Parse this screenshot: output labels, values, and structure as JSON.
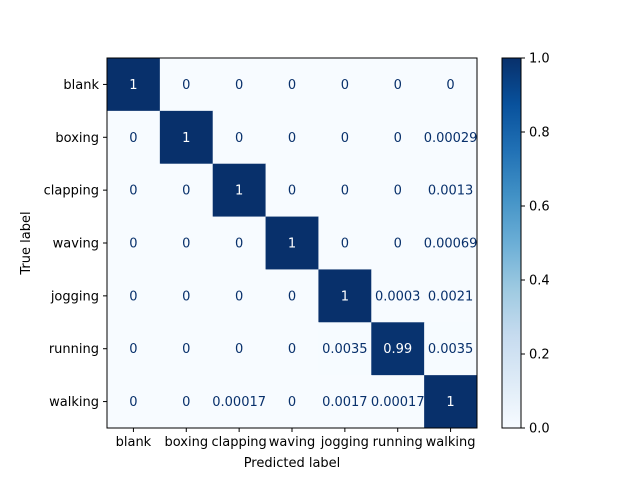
{
  "chart_data": {
    "type": "heatmap",
    "title": "",
    "xlabel": "Predicted label",
    "ylabel": "True label",
    "row_labels": [
      "blank",
      "boxing",
      "clapping",
      "waving",
      "jogging",
      "running",
      "walking"
    ],
    "col_labels": [
      "blank",
      "boxing",
      "clapping",
      "waving",
      "jogging",
      "running",
      "walking"
    ],
    "values": [
      [
        1,
        0,
        0,
        0,
        0,
        0,
        0
      ],
      [
        0,
        1,
        0,
        0,
        0,
        0,
        0.00029
      ],
      [
        0,
        0,
        1,
        0,
        0,
        0,
        0.0013
      ],
      [
        0,
        0,
        0,
        1,
        0,
        0,
        0.00069
      ],
      [
        0,
        0,
        0,
        0,
        1,
        0.0003,
        0.0021
      ],
      [
        0,
        0,
        0,
        0,
        0.0035,
        0.99,
        0.0035
      ],
      [
        0,
        0,
        0.00017,
        0,
        0.0017,
        0.00017,
        1
      ]
    ],
    "cell_text": [
      [
        "1",
        "0",
        "0",
        "0",
        "0",
        "0",
        "0"
      ],
      [
        "0",
        "1",
        "0",
        "0",
        "0",
        "0",
        "0.00029"
      ],
      [
        "0",
        "0",
        "1",
        "0",
        "0",
        "0",
        "0.0013"
      ],
      [
        "0",
        "0",
        "0",
        "1",
        "0",
        "0",
        "0.00069"
      ],
      [
        "0",
        "0",
        "0",
        "0",
        "1",
        "0.0003",
        "0.0021"
      ],
      [
        "0",
        "0",
        "0",
        "0",
        "0.0035",
        "0.99",
        "0.0035"
      ],
      [
        "0",
        "0",
        "0.00017",
        "0",
        "0.0017",
        "0.00017",
        "1"
      ]
    ],
    "colormap": "Blues",
    "vmin": 0.0,
    "vmax": 1.0,
    "colorbar_ticks": [
      0.0,
      0.2,
      0.4,
      0.6,
      0.8,
      1.0
    ],
    "colorbar_tick_labels": [
      "0.0",
      "0.2",
      "0.4",
      "0.6",
      "0.8",
      "1.0"
    ],
    "text_color_low": "#08306b",
    "text_color_high": "#ffffff",
    "cmap_low": "#f7fbff",
    "cmap_high": "#08306b"
  }
}
